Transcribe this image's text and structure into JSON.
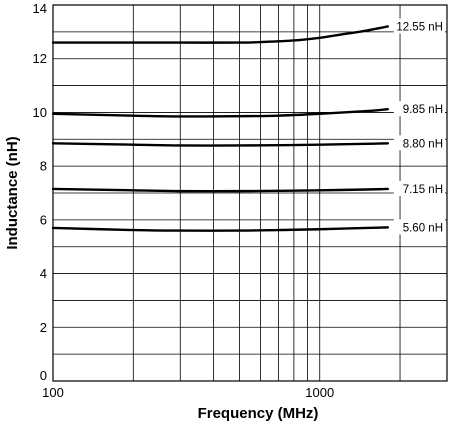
{
  "chart_data": {
    "type": "line",
    "xlabel": "Frequency (MHz)",
    "ylabel": "Inductance (nH)",
    "xscale": "log",
    "xlim": [
      100,
      3000
    ],
    "ylim": [
      0,
      14
    ],
    "x_ticks": [
      {
        "value": 100,
        "label": "100"
      },
      {
        "value": 1000,
        "label": "1000"
      }
    ],
    "x_minor_gridlines": [
      200,
      300,
      400,
      500,
      600,
      700,
      800,
      900,
      2000
    ],
    "y_ticks": [
      {
        "value": 0,
        "label": "0"
      },
      {
        "value": 2,
        "label": "2"
      },
      {
        "value": 4,
        "label": "4"
      },
      {
        "value": 6,
        "label": "6"
      },
      {
        "value": 8,
        "label": "8"
      },
      {
        "value": 10,
        "label": "10"
      },
      {
        "value": 12,
        "label": "12"
      },
      {
        "value": 14,
        "label": "14"
      }
    ],
    "y_minor_gridlines": [
      1,
      3,
      5,
      7,
      9,
      11,
      13
    ],
    "grid": true,
    "series": [
      {
        "name": "12.55 nH",
        "x": [
          100,
          200,
          300,
          500,
          600,
          800,
          1000,
          1200,
          1500,
          1800
        ],
        "y": [
          12.6,
          12.6,
          12.6,
          12.6,
          12.62,
          12.68,
          12.78,
          12.9,
          13.05,
          13.2
        ]
      },
      {
        "name": "9.85 nH",
        "x": [
          100,
          200,
          300,
          500,
          700,
          1000,
          1500,
          1800
        ],
        "y": [
          9.95,
          9.88,
          9.85,
          9.86,
          9.88,
          9.95,
          10.05,
          10.12
        ]
      },
      {
        "name": "8.80 nH",
        "x": [
          100,
          200,
          300,
          500,
          700,
          1000,
          1500,
          1800
        ],
        "y": [
          8.85,
          8.8,
          8.77,
          8.77,
          8.78,
          8.8,
          8.83,
          8.85
        ]
      },
      {
        "name": "7.15 nH",
        "x": [
          100,
          200,
          300,
          500,
          700,
          1000,
          1500,
          1800
        ],
        "y": [
          7.15,
          7.1,
          7.07,
          7.07,
          7.08,
          7.1,
          7.13,
          7.15
        ]
      },
      {
        "name": "5.60 nH",
        "x": [
          100,
          200,
          300,
          500,
          700,
          1000,
          1500,
          1800
        ],
        "y": [
          5.7,
          5.62,
          5.6,
          5.6,
          5.62,
          5.65,
          5.7,
          5.72
        ]
      }
    ]
  }
}
